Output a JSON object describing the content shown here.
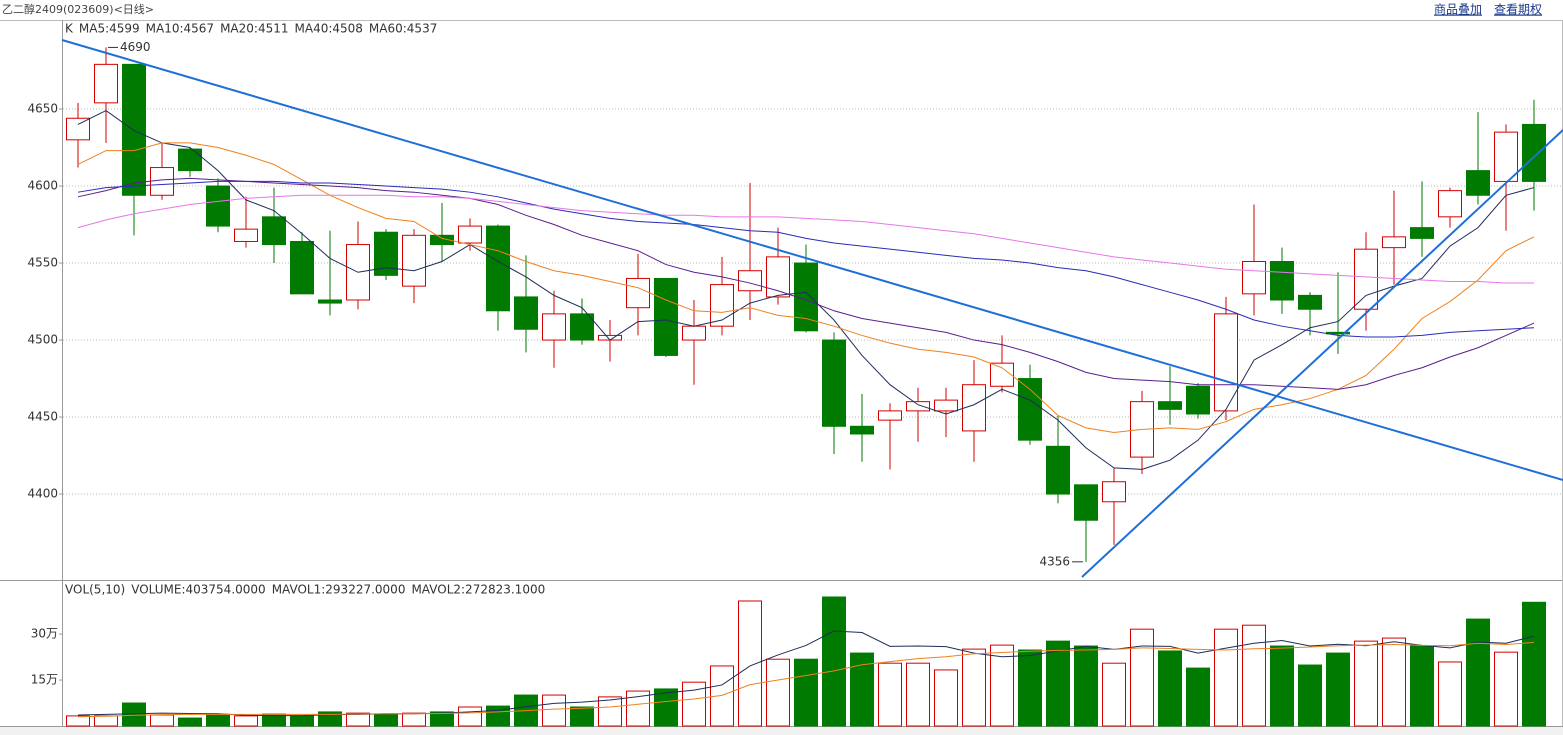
{
  "header": {
    "title": "乙二醇2409(023609)<日线>",
    "links": [
      "商品叠加",
      "查看期权"
    ]
  },
  "chart_data": [
    {
      "type": "candlestick",
      "label": "K",
      "ylim": [
        4345.5,
        4707.8
      ],
      "yticks": [
        4400,
        4450,
        4500,
        4550,
        4600,
        4650
      ],
      "grid": true,
      "up_color": "#d40000",
      "down_color": "#007a00",
      "open": [
        4630,
        4654,
        4679,
        4594,
        4624,
        4600,
        4564,
        4580,
        4564,
        4526,
        4526,
        4570,
        4535,
        4568,
        4563,
        4574,
        4528,
        4500,
        4517,
        4500,
        4521,
        4540,
        4500,
        4509,
        4532,
        4528,
        4550,
        4500,
        4444,
        4448,
        4454,
        4454,
        4441,
        4470,
        4475,
        4431,
        4406,
        4395,
        4424,
        4460,
        4470,
        4454,
        4530,
        4551,
        4529,
        4505,
        4520,
        4560,
        4573,
        4580,
        4610,
        4603,
        4640
      ],
      "high": [
        4654,
        4690,
        4679,
        4628,
        4625,
        4605,
        4593,
        4599,
        4570,
        4571,
        4577,
        4572,
        4572,
        4589,
        4579,
        4575,
        4555,
        4532,
        4527,
        4513,
        4556,
        4540,
        4526,
        4554,
        4602,
        4573,
        4562,
        4505,
        4465,
        4459,
        4469,
        4469,
        4487,
        4503,
        4484,
        4451,
        4406,
        4417,
        4467,
        4483,
        4472,
        4528,
        4588,
        4560,
        4531,
        4544,
        4570,
        4597,
        4603,
        4599,
        4648,
        4640,
        4656
      ],
      "low": [
        4612,
        4628,
        4568,
        4591,
        4606,
        4570,
        4560,
        4550,
        4530,
        4516,
        4520,
        4539,
        4524,
        4551,
        4558,
        4506,
        4492,
        4482,
        4497,
        4486,
        4503,
        4489,
        4471,
        4503,
        4513,
        4523,
        4505,
        4426,
        4421,
        4416,
        4434,
        4437,
        4421,
        4466,
        4432,
        4394,
        4356,
        4367,
        4413,
        4445,
        4449,
        4448,
        4516,
        4517,
        4503,
        4491,
        4506,
        4536,
        4554,
        4573,
        4588,
        4571,
        4584
      ],
      "close": [
        4644,
        4679,
        4594,
        4612,
        4610,
        4574,
        4572,
        4562,
        4530,
        4524,
        4562,
        4542,
        4568,
        4562,
        4574,
        4519,
        4507,
        4517,
        4500,
        4503,
        4540,
        4490,
        4509,
        4536,
        4545,
        4554,
        4506,
        4444,
        4439,
        4454,
        4460,
        4461,
        4471,
        4485,
        4435,
        4400,
        4383,
        4408,
        4460,
        4455,
        4452,
        4517,
        4551,
        4526,
        4520,
        4504,
        4559,
        4567,
        4566,
        4597,
        4594,
        4635,
        4603
      ],
      "series": [
        {
          "name": "MA5:4599",
          "color": "#1e2d5a",
          "values": [
            4640,
            4649,
            4636,
            4628,
            4625,
            4610,
            4591,
            4584,
            4569,
            4553,
            4544,
            4547,
            4545,
            4551,
            4562,
            4551,
            4541,
            4529,
            4521,
            4500,
            4512,
            4513,
            4509,
            4513,
            4524,
            4529,
            4531,
            4513,
            4490,
            4471,
            4458,
            4452,
            4458,
            4468,
            4461,
            4448,
            4430,
            4417,
            4416,
            4422,
            4435,
            4455,
            4487,
            4497,
            4508,
            4512,
            4529,
            4535,
            4540,
            4561,
            4573,
            4594,
            4599
          ]
        },
        {
          "name": "MA10:4567",
          "color": "#f0801e",
          "values": [
            4614,
            4623,
            4623,
            4628,
            4628,
            4625,
            4620,
            4614,
            4604,
            4594,
            4586,
            4579,
            4577,
            4566,
            4562,
            4558,
            4551,
            4545,
            4542,
            4538,
            4534,
            4526,
            4519,
            4518,
            4521,
            4516,
            4514,
            4509,
            4503,
            4498,
            4494,
            4492,
            4489,
            4482,
            4468,
            4451,
            4443,
            4440,
            4442,
            4443,
            4442,
            4447,
            4455,
            4458,
            4462,
            4468,
            4477,
            4494,
            4514,
            4525,
            4539,
            4558,
            4567
          ]
        },
        {
          "name": "MA20:4511",
          "color": "#5a1e8c",
          "values": [
            4593,
            4597,
            4602,
            4604,
            4605,
            4604,
            4603,
            4602,
            4601,
            4600,
            4599,
            4597,
            4596,
            4594,
            4592,
            4588,
            4581,
            4575,
            4568,
            4563,
            4558,
            4549,
            4544,
            4541,
            4537,
            4532,
            4526,
            4519,
            4514,
            4511,
            4508,
            4505,
            4500,
            4497,
            4492,
            4486,
            4479,
            4475,
            4474,
            4473,
            4471,
            4471,
            4471,
            4470,
            4469,
            4468,
            4471,
            4477,
            4482,
            4489,
            4495,
            4503,
            4511
          ]
        },
        {
          "name": "MA40:4508",
          "color": "#2a2ab8",
          "values": [
            4596,
            4599,
            4600,
            4601,
            4602,
            4603,
            4603,
            4603,
            4602,
            4602,
            4601,
            4600,
            4599,
            4598,
            4596,
            4593,
            4589,
            4585,
            4582,
            4579,
            4577,
            4576,
            4575,
            4573,
            4571,
            4570,
            4566,
            4563,
            4561,
            4559,
            4557,
            4555,
            4553,
            4552,
            4550,
            4547,
            4545,
            4541,
            4536,
            4531,
            4526,
            4520,
            4513,
            4509,
            4506,
            4503,
            4502,
            4502,
            4503,
            4505,
            4506,
            4507,
            4508
          ]
        },
        {
          "name": "MA60:4537",
          "color": "#e678e6",
          "values": [
            4573,
            4578,
            4582,
            4585,
            4588,
            4590,
            4592,
            4593,
            4594,
            4594,
            4594,
            4594,
            4593,
            4593,
            4592,
            4590,
            4588,
            4586,
            4584,
            4583,
            4582,
            4581,
            4581,
            4580,
            4580,
            4580,
            4579,
            4578,
            4577,
            4575,
            4573,
            4571,
            4569,
            4566,
            4563,
            4560,
            4557,
            4554,
            4552,
            4550,
            4548,
            4546,
            4545,
            4544,
            4543,
            4542,
            4541,
            4540,
            4539,
            4538,
            4538,
            4537,
            4537
          ]
        }
      ]
    },
    {
      "type": "bar",
      "label": "VOL(5,10)",
      "value_name": "VOLUME:403754.0000",
      "ylim": [
        0,
        470000
      ],
      "yticks": [
        {
          "value": 150000,
          "label": "15万"
        },
        {
          "value": 300000,
          "label": "30万"
        }
      ],
      "grid": false,
      "values": [
        33000,
        33000,
        75000,
        36000,
        26000,
        36000,
        33000,
        39000,
        33000,
        46000,
        42000,
        39000,
        42000,
        46000,
        62000,
        65000,
        101000,
        101000,
        62000,
        95000,
        114000,
        121000,
        143000,
        196000,
        408000,
        218000,
        218000,
        421000,
        238000,
        205000,
        205000,
        183000,
        251000,
        264000,
        248000,
        277000,
        261000,
        205000,
        316000,
        245000,
        189000,
        316000,
        329000,
        261000,
        199000,
        238000,
        277000,
        287000,
        261000,
        209000,
        349000,
        241000,
        403754
      ],
      "series": [
        {
          "name": "MAVOL1:293227.0000",
          "color": "#1e2d5a",
          "values": [
            36000,
            38000,
            40000,
            42000,
            41000,
            40000,
            35000,
            34000,
            34000,
            37000,
            38000,
            40000,
            40000,
            42000,
            46000,
            51000,
            63000,
            74000,
            78000,
            85000,
            96000,
            108000,
            117000,
            134000,
            196000,
            232000,
            263000,
            310000,
            305000,
            260000,
            261000,
            259000,
            238000,
            226000,
            230000,
            245000,
            260000,
            250000,
            261000,
            260000,
            238000,
            254000,
            270000,
            279000,
            261000,
            267000,
            262000,
            275000,
            263000,
            255000,
            274000,
            270000,
            293227
          ]
        },
        {
          "name": "MAVOL2:272823.1000",
          "color": "#f0801e",
          "values": [
            30000,
            32000,
            35000,
            37000,
            38000,
            38000,
            38000,
            38000,
            38000,
            38000,
            39000,
            40000,
            40000,
            41000,
            43000,
            46000,
            50000,
            55000,
            58000,
            62000,
            71000,
            80000,
            88000,
            100000,
            135000,
            150000,
            165000,
            180000,
            200000,
            210000,
            220000,
            226000,
            236000,
            240000,
            244000,
            247000,
            248000,
            250000,
            255000,
            253000,
            250000,
            248000,
            252000,
            254000,
            258000,
            262000,
            264000,
            266000,
            263000,
            262000,
            270000,
            266000,
            272823.1
          ]
        }
      ]
    }
  ]
}
